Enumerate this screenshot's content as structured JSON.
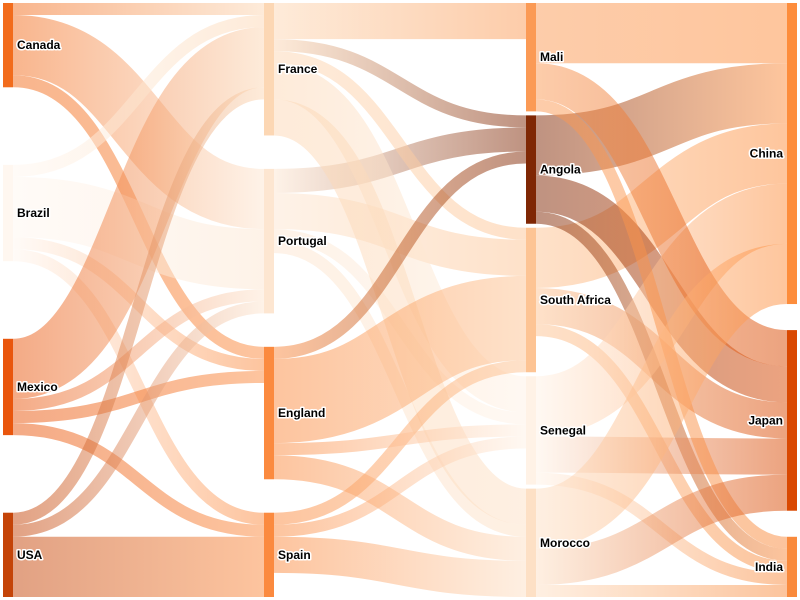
{
  "chart_data": {
    "type": "sankey",
    "title": "",
    "nodes": [
      {
        "name": "Canada",
        "color": "#f26c1c"
      },
      {
        "name": "Brazil",
        "color": "#fff7f0"
      },
      {
        "name": "Mexico",
        "color": "#e9560d"
      },
      {
        "name": "USA",
        "color": "#c44408"
      },
      {
        "name": "France",
        "color": "#fcd7b4"
      },
      {
        "name": "Portugal",
        "color": "#fde6d1"
      },
      {
        "name": "England",
        "color": "#fb8a3f"
      },
      {
        "name": "Spain",
        "color": "#fb8a3f"
      },
      {
        "name": "Mali",
        "color": "#fb9a55"
      },
      {
        "name": "Angola",
        "color": "#7f2704"
      },
      {
        "name": "South Africa",
        "color": "#fdc494"
      },
      {
        "name": "Senegal",
        "color": "#fff2e6"
      },
      {
        "name": "Morocco",
        "color": "#fde0c5"
      },
      {
        "name": "China",
        "color": "#fd8d3c"
      },
      {
        "name": "Japan",
        "color": "#d94801"
      },
      {
        "name": "India",
        "color": "#f98a3c"
      }
    ],
    "links": [
      {
        "source": "Canada",
        "target": "Portugal",
        "value": 5
      },
      {
        "source": "Canada",
        "target": "France",
        "value": 1
      },
      {
        "source": "Canada",
        "target": "England",
        "value": 1
      },
      {
        "source": "Brazil",
        "target": "Portugal",
        "value": 5
      },
      {
        "source": "Brazil",
        "target": "France",
        "value": 1
      },
      {
        "source": "Brazil",
        "target": "Spain",
        "value": 1
      },
      {
        "source": "Brazil",
        "target": "England",
        "value": 1
      },
      {
        "source": "Mexico",
        "target": "Portugal",
        "value": 1
      },
      {
        "source": "Mexico",
        "target": "France",
        "value": 5
      },
      {
        "source": "Mexico",
        "target": "Spain",
        "value": 1
      },
      {
        "source": "Mexico",
        "target": "England",
        "value": 1
      },
      {
        "source": "USA",
        "target": "Portugal",
        "value": 1
      },
      {
        "source": "USA",
        "target": "France",
        "value": 1
      },
      {
        "source": "USA",
        "target": "Spain",
        "value": 5
      },
      {
        "source": "Portugal",
        "target": "Angola",
        "value": 2
      },
      {
        "source": "Portugal",
        "target": "Senegal",
        "value": 1
      },
      {
        "source": "Portugal",
        "target": "Morocco",
        "value": 1
      },
      {
        "source": "Portugal",
        "target": "South Africa",
        "value": 3
      },
      {
        "source": "France",
        "target": "Angola",
        "value": 1
      },
      {
        "source": "France",
        "target": "Senegal",
        "value": 3
      },
      {
        "source": "France",
        "target": "Mali",
        "value": 3
      },
      {
        "source": "France",
        "target": "Morocco",
        "value": 3
      },
      {
        "source": "France",
        "target": "South Africa",
        "value": 1
      },
      {
        "source": "Spain",
        "target": "Senegal",
        "value": 1
      },
      {
        "source": "Spain",
        "target": "Morocco",
        "value": 3
      },
      {
        "source": "Spain",
        "target": "South Africa",
        "value": 1
      },
      {
        "source": "England",
        "target": "Angola",
        "value": 1
      },
      {
        "source": "England",
        "target": "Senegal",
        "value": 1
      },
      {
        "source": "England",
        "target": "Morocco",
        "value": 2
      },
      {
        "source": "England",
        "target": "South Africa",
        "value": 7
      },
      {
        "source": "South Africa",
        "target": "China",
        "value": 5
      },
      {
        "source": "South Africa",
        "target": "India",
        "value": 1
      },
      {
        "source": "South Africa",
        "target": "Japan",
        "value": 3
      },
      {
        "source": "Angola",
        "target": "China",
        "value": 5
      },
      {
        "source": "Angola",
        "target": "India",
        "value": 1
      },
      {
        "source": "Angola",
        "target": "Japan",
        "value": 3
      },
      {
        "source": "Senegal",
        "target": "China",
        "value": 5
      },
      {
        "source": "Senegal",
        "target": "India",
        "value": 1
      },
      {
        "source": "Senegal",
        "target": "Japan",
        "value": 3
      },
      {
        "source": "Mali",
        "target": "China",
        "value": 5
      },
      {
        "source": "Mali",
        "target": "India",
        "value": 1
      },
      {
        "source": "Mali",
        "target": "Japan",
        "value": 3
      },
      {
        "source": "Morocco",
        "target": "China",
        "value": 5
      },
      {
        "source": "Morocco",
        "target": "India",
        "value": 1
      },
      {
        "source": "Morocco",
        "target": "Japan",
        "value": 3
      }
    ]
  }
}
